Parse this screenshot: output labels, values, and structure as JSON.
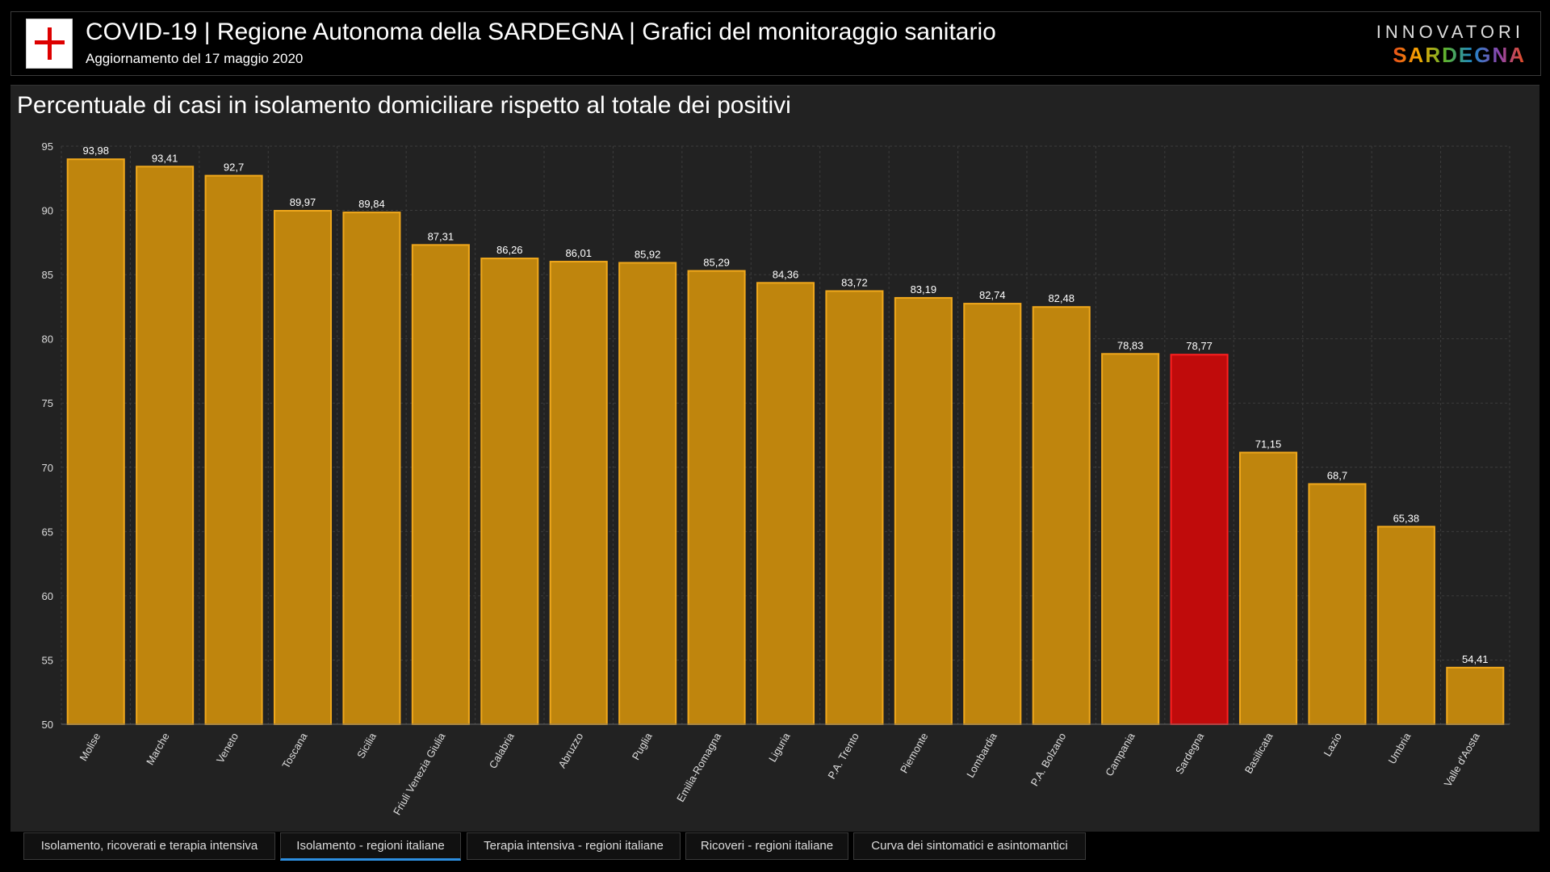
{
  "header": {
    "title": "COVID-19 | Regione Autonoma della SARDEGNA | Grafici del monitoraggio sanitario",
    "subtitle": "Aggiornamento del 17 maggio 2020",
    "brand_top": "INNOVATORI",
    "brand_bottom": "SARDEGNA"
  },
  "tabs": [
    {
      "label": "Isolamento, ricoverati e terapia intensiva",
      "active": false
    },
    {
      "label": "Isolamento - regioni italiane",
      "active": true
    },
    {
      "label": "Terapia intensiva - regioni italiane",
      "active": false
    },
    {
      "label": "Ricoveri - regioni italiane",
      "active": false
    },
    {
      "label": "Curva dei sintomatici e asintomantici",
      "active": false
    }
  ],
  "colors": {
    "bar": "#bf850d",
    "bar_border": "#f0a81c",
    "highlight": "#c00b0b",
    "highlight_border": "#ff2020",
    "grid": "#3c3c3c"
  },
  "chart_data": {
    "type": "bar",
    "title": "Percentuale di casi in isolamento domiciliare rispetto al totale dei positivi",
    "xlabel": "",
    "ylabel": "",
    "ylim": [
      50,
      95
    ],
    "yticks": [
      50,
      55,
      60,
      65,
      70,
      75,
      80,
      85,
      90,
      95
    ],
    "grid": true,
    "highlight": "Sardegna",
    "categories": [
      "Molise",
      "Marche",
      "Veneto",
      "Toscana",
      "Sicilia",
      "Friuli Venezia Giulia",
      "Calabria",
      "Abruzzo",
      "Puglia",
      "Emilia-Romagna",
      "Liguria",
      "P.A. Trento",
      "Piemonte",
      "Lombardia",
      "P.A. Bolzano",
      "Campania",
      "Sardegna",
      "Basilicata",
      "Lazio",
      "Umbria",
      "Valle d'Aosta"
    ],
    "values": [
      93.98,
      93.41,
      92.7,
      89.97,
      89.84,
      87.31,
      86.26,
      86.01,
      85.92,
      85.29,
      84.36,
      83.72,
      83.19,
      82.74,
      82.48,
      78.83,
      78.77,
      71.15,
      68.7,
      65.38,
      54.41
    ],
    "labels": [
      "93,98",
      "93,41",
      "92,7",
      "89,97",
      "89,84",
      "87,31",
      "86,26",
      "86,01",
      "85,92",
      "85,29",
      "84,36",
      "83,72",
      "83,19",
      "82,74",
      "82,48",
      "78,83",
      "78,77",
      "71,15",
      "68,7",
      "65,38",
      "54,41"
    ]
  }
}
